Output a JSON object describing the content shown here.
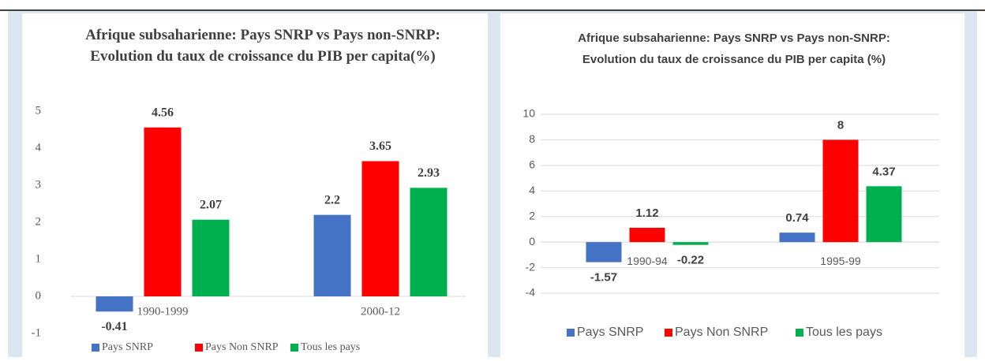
{
  "chart_data": [
    {
      "type": "bar",
      "title": "Afrique subsaharienne: Pays SNRP vs Pays non-SNRP: Evolution du taux de croissance du PIB per capita(%)",
      "categories": [
        "1990-1999",
        "2000-12"
      ],
      "series": [
        {
          "name": "Pays SNRP",
          "color": "#4472c4",
          "values": [
            -0.41,
            2.2
          ]
        },
        {
          "name": "Pays Non SNRP",
          "color": "#ff0000",
          "values": [
            4.56,
            3.65
          ]
        },
        {
          "name": "Tous les pays",
          "color": "#00b050",
          "values": [
            2.07,
            2.93
          ]
        }
      ],
      "ylim": [
        -1,
        5
      ],
      "yticks": [
        -1,
        0,
        1,
        2,
        3,
        4,
        5
      ],
      "grid": false,
      "legend": "bottom"
    },
    {
      "type": "bar",
      "title": "Afrique subsaharienne: Pays SNRP vs Pays non-SNRP: Evolution du taux de croissance du PIB per capita (%)",
      "categories": [
        "1990-94",
        "1995-99"
      ],
      "series": [
        {
          "name": "Pays SNRP",
          "color": "#4472c4",
          "values": [
            -1.57,
            0.74
          ]
        },
        {
          "name": "Pays Non SNRP",
          "color": "#ff0000",
          "values": [
            1.12,
            8
          ]
        },
        {
          "name": "Tous les pays",
          "color": "#00b050",
          "values": [
            -0.22,
            4.37
          ]
        }
      ],
      "ylim": [
        -4,
        10
      ],
      "yticks": [
        -4,
        -2,
        0,
        2,
        4,
        6,
        8,
        10
      ],
      "grid": true,
      "legend": "bottom"
    }
  ]
}
